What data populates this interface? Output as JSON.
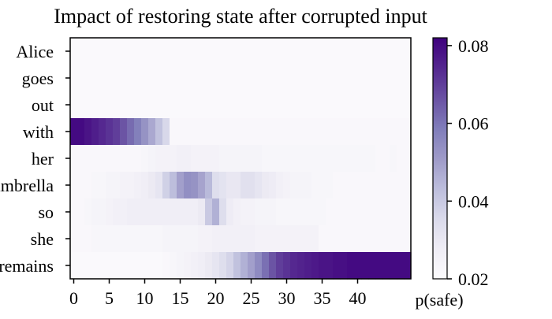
{
  "chart_data": {
    "type": "heatmap",
    "title": "Impact of restoring state after corrupted input",
    "rows": [
      "Alice",
      "goes",
      "out",
      "with",
      "her",
      "umbrella",
      "so",
      "she",
      "remains"
    ],
    "x_ticks": [
      0,
      5,
      10,
      15,
      20,
      25,
      30,
      35,
      40
    ],
    "x_range": [
      0,
      48
    ],
    "colorbar": {
      "label": "p(safe)",
      "ticks": [
        0.02,
        0.04,
        0.06,
        0.08
      ],
      "range": [
        0.02,
        0.082
      ],
      "colormap": [
        "#fcfbfd",
        "#efedf5",
        "#dadaeb",
        "#bcbddc",
        "#9e9ac8",
        "#807dba",
        "#6a51a3",
        "#54278f",
        "#3f007d"
      ]
    },
    "values": [
      [
        0.021,
        0.021,
        0.021,
        0.021,
        0.021,
        0.021,
        0.021,
        0.021,
        0.021,
        0.021,
        0.021,
        0.021,
        0.021,
        0.021,
        0.021,
        0.021,
        0.021,
        0.021,
        0.021,
        0.021,
        0.021,
        0.021,
        0.021,
        0.021,
        0.021,
        0.021,
        0.021,
        0.021,
        0.021,
        0.021,
        0.021,
        0.021,
        0.021,
        0.021,
        0.021,
        0.021,
        0.021,
        0.021,
        0.021,
        0.021,
        0.021,
        0.021,
        0.021,
        0.021,
        0.021,
        0.021,
        0.021,
        0.021
      ],
      [
        0.021,
        0.021,
        0.021,
        0.021,
        0.021,
        0.021,
        0.021,
        0.021,
        0.021,
        0.021,
        0.021,
        0.021,
        0.021,
        0.021,
        0.021,
        0.021,
        0.021,
        0.021,
        0.021,
        0.021,
        0.021,
        0.021,
        0.021,
        0.021,
        0.021,
        0.021,
        0.021,
        0.021,
        0.021,
        0.021,
        0.021,
        0.021,
        0.021,
        0.021,
        0.021,
        0.021,
        0.021,
        0.021,
        0.021,
        0.021,
        0.021,
        0.021,
        0.021,
        0.021,
        0.021,
        0.021,
        0.021,
        0.021
      ],
      [
        0.021,
        0.021,
        0.021,
        0.021,
        0.021,
        0.021,
        0.021,
        0.021,
        0.021,
        0.021,
        0.021,
        0.021,
        0.021,
        0.021,
        0.021,
        0.021,
        0.021,
        0.021,
        0.021,
        0.021,
        0.021,
        0.021,
        0.021,
        0.021,
        0.021,
        0.021,
        0.021,
        0.021,
        0.021,
        0.021,
        0.021,
        0.021,
        0.021,
        0.021,
        0.021,
        0.021,
        0.021,
        0.021,
        0.021,
        0.021,
        0.021,
        0.021,
        0.021,
        0.021,
        0.021,
        0.021,
        0.021,
        0.021
      ],
      [
        0.08,
        0.08,
        0.078,
        0.076,
        0.074,
        0.072,
        0.07,
        0.066,
        0.062,
        0.058,
        0.053,
        0.048,
        0.042,
        0.036,
        0.022,
        0.022,
        0.022,
        0.022,
        0.022,
        0.022,
        0.022,
        0.022,
        0.022,
        0.022,
        0.022,
        0.022,
        0.022,
        0.022,
        0.022,
        0.022,
        0.022,
        0.022,
        0.022,
        0.022,
        0.022,
        0.022,
        0.022,
        0.022,
        0.022,
        0.022,
        0.022,
        0.022,
        0.022,
        0.022,
        0.022,
        0.022,
        0.022,
        0.022
      ],
      [
        0.022,
        0.022,
        0.022,
        0.022,
        0.022,
        0.022,
        0.022,
        0.022,
        0.022,
        0.022,
        0.023,
        0.024,
        0.025,
        0.025,
        0.025,
        0.026,
        0.026,
        0.025,
        0.025,
        0.025,
        0.025,
        0.024,
        0.024,
        0.024,
        0.024,
        0.024,
        0.024,
        0.023,
        0.023,
        0.023,
        0.023,
        0.023,
        0.023,
        0.023,
        0.023,
        0.023,
        0.023,
        0.023,
        0.023,
        0.023,
        0.023,
        0.023,
        0.023,
        0.022,
        0.022,
        0.023,
        0.022,
        0.022
      ],
      [
        0.022,
        0.022,
        0.022,
        0.023,
        0.023,
        0.024,
        0.024,
        0.025,
        0.025,
        0.026,
        0.027,
        0.029,
        0.031,
        0.038,
        0.043,
        0.05,
        0.054,
        0.053,
        0.049,
        0.044,
        0.034,
        0.032,
        0.03,
        0.03,
        0.033,
        0.033,
        0.031,
        0.029,
        0.028,
        0.026,
        0.025,
        0.024,
        0.024,
        0.024,
        0.023,
        0.023,
        0.023,
        0.022,
        0.022,
        0.022,
        0.022,
        0.022,
        0.022,
        0.022,
        0.022,
        0.022,
        0.022,
        0.022
      ],
      [
        0.022,
        0.022,
        0.023,
        0.024,
        0.024,
        0.025,
        0.026,
        0.026,
        0.027,
        0.027,
        0.027,
        0.027,
        0.027,
        0.027,
        0.027,
        0.027,
        0.027,
        0.027,
        0.029,
        0.04,
        0.046,
        0.034,
        0.028,
        0.026,
        0.025,
        0.025,
        0.024,
        0.024,
        0.024,
        0.023,
        0.023,
        0.023,
        0.023,
        0.023,
        0.023,
        0.023,
        0.022,
        0.022,
        0.022,
        0.022,
        0.022,
        0.022,
        0.022,
        0.022,
        0.022,
        0.022,
        0.022,
        0.022
      ],
      [
        0.022,
        0.022,
        0.022,
        0.023,
        0.023,
        0.023,
        0.023,
        0.023,
        0.023,
        0.023,
        0.023,
        0.023,
        0.023,
        0.024,
        0.024,
        0.024,
        0.024,
        0.024,
        0.025,
        0.025,
        0.026,
        0.026,
        0.026,
        0.026,
        0.026,
        0.026,
        0.025,
        0.025,
        0.025,
        0.025,
        0.025,
        0.025,
        0.025,
        0.025,
        0.025,
        0.022,
        0.022,
        0.022,
        0.022,
        0.022,
        0.022,
        0.022,
        0.022,
        0.022,
        0.022,
        0.022,
        0.022,
        0.022
      ],
      [
        0.021,
        0.021,
        0.021,
        0.021,
        0.021,
        0.021,
        0.021,
        0.021,
        0.021,
        0.021,
        0.021,
        0.021,
        0.021,
        0.022,
        0.023,
        0.024,
        0.025,
        0.026,
        0.027,
        0.029,
        0.031,
        0.034,
        0.037,
        0.042,
        0.046,
        0.05,
        0.055,
        0.061,
        0.066,
        0.07,
        0.072,
        0.074,
        0.075,
        0.076,
        0.077,
        0.078,
        0.078,
        0.079,
        0.079,
        0.08,
        0.08,
        0.08,
        0.08,
        0.08,
        0.08,
        0.08,
        0.08,
        0.08
      ]
    ]
  }
}
